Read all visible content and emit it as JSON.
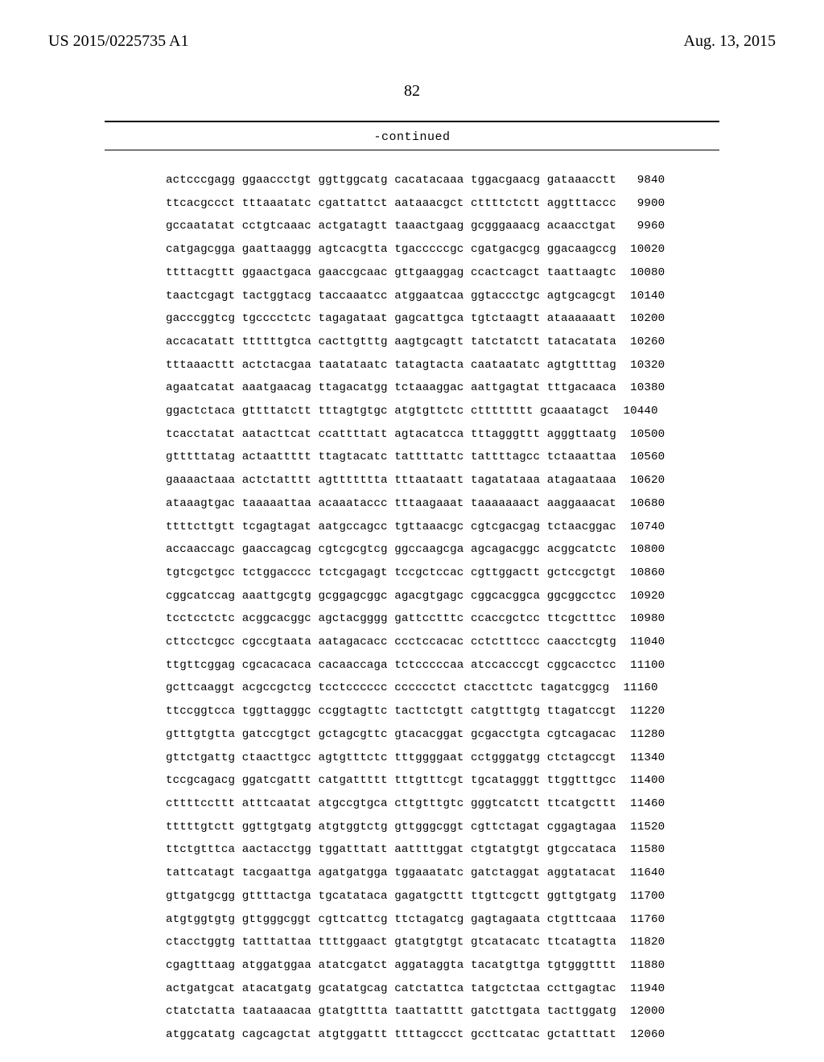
{
  "header": {
    "left": "US 2015/0225735 A1",
    "right": "Aug. 13, 2015"
  },
  "page_number": "82",
  "continued_label": "-continued",
  "sequence_rows": [
    {
      "seq": "actcccgagg ggaaccctgt ggttggcatg cacatacaaa tggacgaacg gataaacctt",
      "pos": " 9840"
    },
    {
      "seq": "ttcacgccct tttaaatatc cgattattct aataaacgct cttttctctt aggtttaccc",
      "pos": " 9900"
    },
    {
      "seq": "gccaatatat cctgtcaaac actgatagtt taaactgaag gcgggaaacg acaacctgat",
      "pos": " 9960"
    },
    {
      "seq": "catgagcgga gaattaaggg agtcacgtta tgacccccgc cgatgacgcg ggacaagccg",
      "pos": "10020"
    },
    {
      "seq": "ttttacgttt ggaactgaca gaaccgcaac gttgaaggag ccactcagct taattaagtc",
      "pos": "10080"
    },
    {
      "seq": "taactcgagt tactggtacg taccaaatcc atggaatcaa ggtaccctgc agtgcagcgt",
      "pos": "10140"
    },
    {
      "seq": "gacccggtcg tgcccctctc tagagataat gagcattgca tgtctaagtt ataaaaaatt",
      "pos": "10200"
    },
    {
      "seq": "accacatatt ttttttgtca cacttgtttg aagtgcagtt tatctatctt tatacatata",
      "pos": "10260"
    },
    {
      "seq": "tttaaacttt actctacgaa taatataatc tatagtacta caataatatc agtgttttag",
      "pos": "10320"
    },
    {
      "seq": "agaatcatat aaatgaacag ttagacatgg tctaaaggac aattgagtat tttgacaaca",
      "pos": "10380"
    },
    {
      "seq": "ggactctaca gttttatctt tttagtgtgc atgtgttctc ctttttttt gcaaatagct",
      "pos": "10440"
    },
    {
      "seq": "tcacctatat aatacttcat ccattttatt agtacatcca tttagggttt agggttaatg",
      "pos": "10500"
    },
    {
      "seq": "gtttttatag actaattttt ttagtacatc tattttattc tattttagcc tctaaattaa",
      "pos": "10560"
    },
    {
      "seq": "gaaaactaaa actctatttt agttttttta tttaataatt tagatataaa atagaataaa",
      "pos": "10620"
    },
    {
      "seq": "ataaagtgac taaaaattaa acaaataccc tttaagaaat taaaaaaact aaggaaacat",
      "pos": "10680"
    },
    {
      "seq": "ttttcttgtt tcgagtagat aatgccagcc tgttaaacgc cgtcgacgag tctaacggac",
      "pos": "10740"
    },
    {
      "seq": "accaaccagc gaaccagcag cgtcgcgtcg ggccaagcga agcagacggc acggcatctc",
      "pos": "10800"
    },
    {
      "seq": "tgtcgctgcc tctggacccc tctcgagagt tccgctccac cgttggactt gctccgctgt",
      "pos": "10860"
    },
    {
      "seq": "cggcatccag aaattgcgtg gcggagcggc agacgtgagc cggcacggca ggcggcctcc",
      "pos": "10920"
    },
    {
      "seq": "tcctcctctc acggcacggc agctacgggg gattcctttc ccaccgctcc ttcgctttcc",
      "pos": "10980"
    },
    {
      "seq": "cttcctcgcc cgccgtaata aatagacacc ccctccacac cctctttccc caacctcgtg",
      "pos": "11040"
    },
    {
      "seq": "ttgttcggag cgcacacaca cacaaccaga tctcccccaa atccacccgt cggcacctcc",
      "pos": "11100"
    },
    {
      "seq": "gcttcaaggt acgccgctcg tcctcccccc cccccctct ctaccttctc tagatcggcg",
      "pos": "11160"
    },
    {
      "seq": "ttccggtcca tggttagggc ccggtagttc tacttctgtt catgtttgtg ttagatccgt",
      "pos": "11220"
    },
    {
      "seq": "gtttgtgtta gatccgtgct gctagcgttc gtacacggat gcgacctgta cgtcagacac",
      "pos": "11280"
    },
    {
      "seq": "gttctgattg ctaacttgcc agtgtttctc tttggggaat cctgggatgg ctctagccgt",
      "pos": "11340"
    },
    {
      "seq": "tccgcagacg ggatcgattt catgattttt tttgtttcgt tgcatagggt ttggtttgcc",
      "pos": "11400"
    },
    {
      "seq": "cttttccttt atttcaatat atgccgtgca cttgtttgtc gggtcatctt ttcatgcttt",
      "pos": "11460"
    },
    {
      "seq": "tttttgtctt ggttgtgatg atgtggtctg gttgggcggt cgttctagat cggagtagaa",
      "pos": "11520"
    },
    {
      "seq": "ttctgtttca aactacctgg tggatttatt aattttggat ctgtatgtgt gtgccataca",
      "pos": "11580"
    },
    {
      "seq": "tattcatagt tacgaattga agatgatgga tggaaatatc gatctaggat aggtatacat",
      "pos": "11640"
    },
    {
      "seq": "gttgatgcgg gttttactga tgcatataca gagatgcttt ttgttcgctt ggttgtgatg",
      "pos": "11700"
    },
    {
      "seq": "atgtggtgtg gttgggcggt cgttcattcg ttctagatcg gagtagaata ctgtttcaaa",
      "pos": "11760"
    },
    {
      "seq": "ctacctggtg tatttattaa ttttggaact gtatgtgtgt gtcatacatc ttcatagtta",
      "pos": "11820"
    },
    {
      "seq": "cgagtttaag atggatggaa atatcgatct aggataggta tacatgttga tgtgggtttt",
      "pos": "11880"
    },
    {
      "seq": "actgatgcat atacatgatg gcatatgcag catctattca tatgctctaa ccttgagtac",
      "pos": "11940"
    },
    {
      "seq": "ctatctatta taataaacaa gtatgtttta taattatttt gatcttgata tacttggatg",
      "pos": "12000"
    },
    {
      "seq": "atggcatatg cagcagctat atgtggattt ttttagccct gccttcatac gctatttatt",
      "pos": "12060"
    }
  ]
}
